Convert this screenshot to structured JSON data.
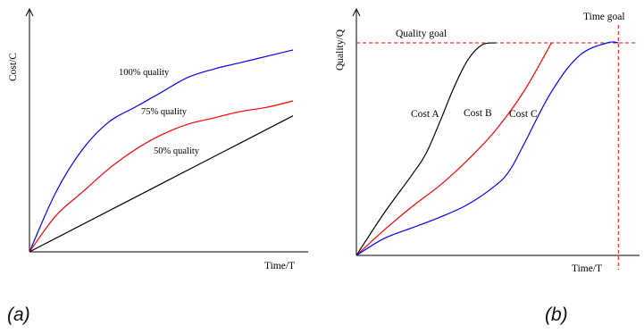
{
  "panels": {
    "a": {
      "caption": "(a)"
    },
    "b": {
      "caption": "(b)"
    }
  },
  "chart_data": [
    {
      "type": "line",
      "xlabel": "Time/T",
      "ylabel": "Cost/C",
      "series": [
        {
          "name": "100% quality",
          "color": "#0000ff",
          "x": [
            0.0,
            0.1,
            0.2,
            0.3,
            0.4,
            0.5,
            0.6,
            0.7,
            0.8,
            0.9,
            1.0
          ],
          "y": [
            0.0,
            0.28,
            0.48,
            0.61,
            0.68,
            0.75,
            0.82,
            0.86,
            0.89,
            0.92,
            0.95
          ]
        },
        {
          "name": "75% quality",
          "color": "#ff0000",
          "x": [
            0.0,
            0.1,
            0.2,
            0.3,
            0.4,
            0.5,
            0.6,
            0.7,
            0.8,
            0.9,
            1.0
          ],
          "y": [
            0.0,
            0.17,
            0.28,
            0.39,
            0.48,
            0.55,
            0.6,
            0.63,
            0.66,
            0.68,
            0.71
          ]
        },
        {
          "name": "50% quality",
          "color": "#000000",
          "x": [
            0.0,
            0.5,
            1.0
          ],
          "y": [
            0.0,
            0.32,
            0.64
          ]
        }
      ]
    },
    {
      "type": "line",
      "xlabel": "Time/T",
      "ylabel": "Quality/Q",
      "reference_lines": {
        "horizontal": {
          "label": "Quality goal",
          "color": "#ff0000",
          "style": "dashed",
          "y": 1.0
        },
        "vertical": {
          "label": "Time goal",
          "color": "#ff0000",
          "style": "dashed",
          "x": 0.94
        }
      },
      "series": [
        {
          "name": "Cost A",
          "color": "#000000",
          "x": [
            0.0,
            0.1,
            0.2,
            0.25,
            0.3,
            0.35,
            0.4,
            0.45,
            0.5
          ],
          "y": [
            0.0,
            0.2,
            0.38,
            0.48,
            0.63,
            0.79,
            0.92,
            0.99,
            1.0
          ]
        },
        {
          "name": "Cost B",
          "color": "#ff0000",
          "x": [
            0.0,
            0.1,
            0.2,
            0.3,
            0.4,
            0.5,
            0.6,
            0.7
          ],
          "y": [
            0.0,
            0.12,
            0.23,
            0.33,
            0.45,
            0.59,
            0.77,
            1.0
          ]
        },
        {
          "name": "Cost C",
          "color": "#0000ff",
          "x": [
            0.0,
            0.1,
            0.2,
            0.3,
            0.4,
            0.5,
            0.55,
            0.6,
            0.7,
            0.8,
            0.9,
            0.94
          ],
          "y": [
            0.0,
            0.08,
            0.13,
            0.18,
            0.24,
            0.33,
            0.4,
            0.52,
            0.77,
            0.94,
            1.0,
            1.0
          ]
        }
      ]
    }
  ]
}
